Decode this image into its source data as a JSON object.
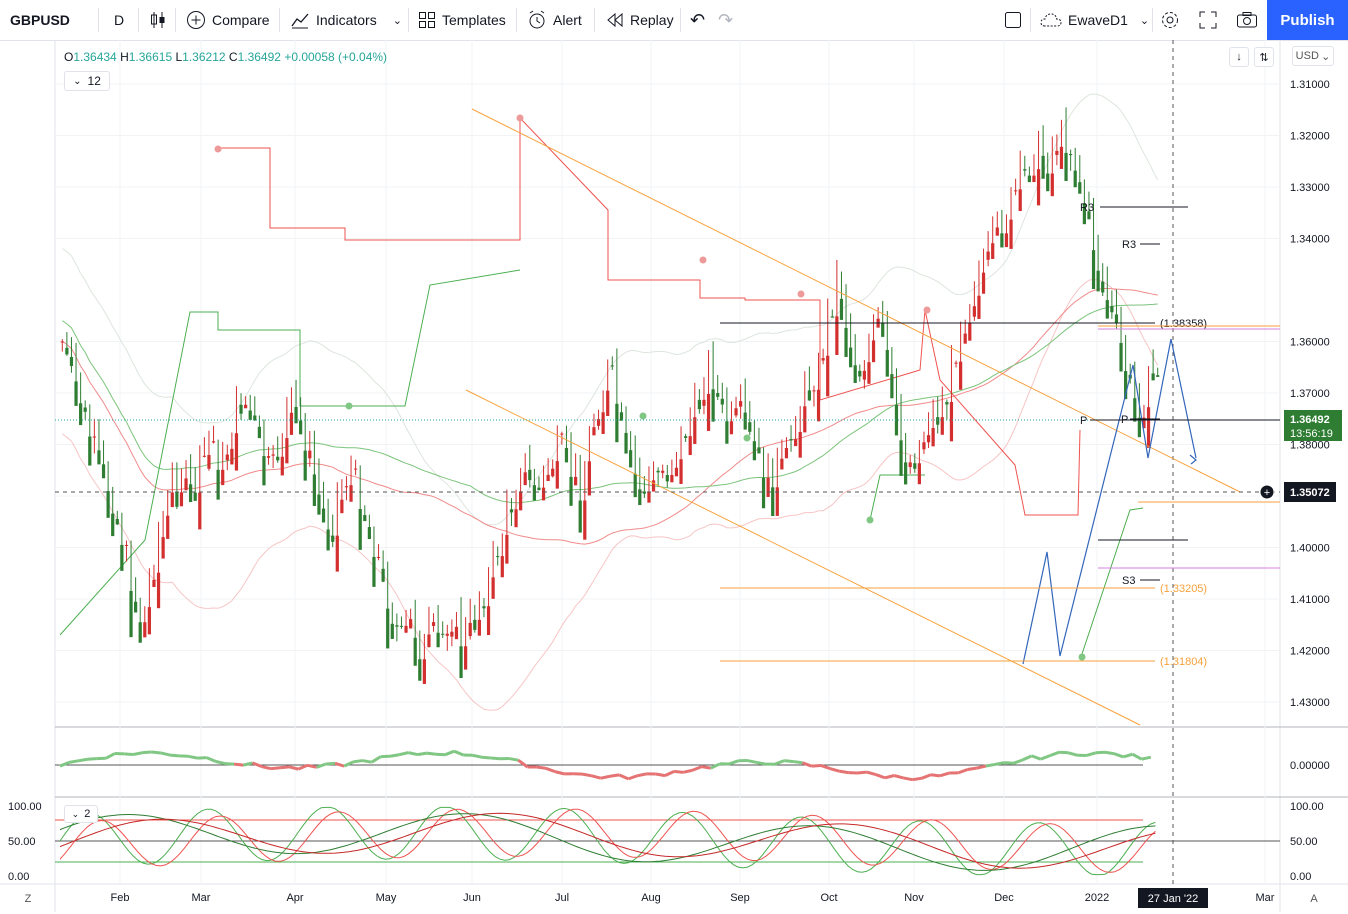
{
  "toolbar": {
    "symbol": "GBPUSD",
    "interval": "D",
    "compare": "Compare",
    "indicators": "Indicators",
    "templates": "Templates",
    "alert": "Alert",
    "replay": "Replay",
    "layout_name": "EwaveD1",
    "publish": "Publish"
  },
  "legend": {
    "o_label": "O",
    "o": "1.36434",
    "h_label": "H",
    "h": "1.36615",
    "l_label": "L",
    "l": "1.36212",
    "c_label": "C",
    "c": "1.36492",
    "change": "+0.00058 (+0.04%)",
    "indicator_count": "12",
    "stoch_count": "2"
  },
  "price_scale": {
    "currency": "USD",
    "last_price": "1.36492",
    "countdown": "13:56:19",
    "crosshair_price": "1.35072"
  },
  "colors": {
    "up": "#26a69a",
    "down": "#ef5350",
    "candle_up": "#2e7d32",
    "candle_down": "#d32f2f",
    "accent": "#2962ff",
    "channel": "#f7a23c",
    "projection": "#3366bb"
  },
  "chart_data": [
    {
      "type": "candlestick",
      "title": "GBPUSD",
      "x_axis": [
        "Feb",
        "Mar",
        "Apr",
        "May",
        "Jun",
        "Jul",
        "Aug",
        "Sep",
        "Oct",
        "Nov",
        "Dec",
        "2022",
        "Mar"
      ],
      "x_marker": "27 Jan '22",
      "y_ticks": [
        "1.43000",
        "1.42000",
        "1.41000",
        "1.40000",
        "1.39000",
        "1.38000",
        "1.37000",
        "1.36000",
        "1.34000",
        "1.33000",
        "1.32000",
        "1.31000"
      ],
      "ylim": [
        1.302,
        1.435
      ],
      "close_path": [
        1.36,
        1.366,
        1.372,
        1.38,
        1.385,
        1.39,
        1.398,
        1.407,
        1.415,
        1.404,
        1.395,
        1.388,
        1.385,
        1.39,
        1.384,
        1.378,
        1.385,
        1.376,
        1.37,
        1.374,
        1.38,
        1.386,
        1.378,
        1.372,
        1.376,
        1.383,
        1.392,
        1.396,
        1.388,
        1.385,
        1.39,
        1.397,
        1.404,
        1.412,
        1.418,
        1.413,
        1.42,
        1.416,
        1.418,
        1.412,
        1.418,
        1.414,
        1.41,
        1.406,
        1.398,
        1.392,
        1.383,
        1.386,
        1.389,
        1.383,
        1.38,
        1.385,
        1.388,
        1.377,
        1.37,
        1.365,
        1.375,
        1.383,
        1.389,
        1.387,
        1.385,
        1.384,
        1.38,
        1.375,
        1.37,
        1.364,
        1.372,
        1.376,
        1.373,
        1.377,
        1.383,
        1.386,
        1.384,
        1.38,
        1.372,
        1.368,
        1.365,
        1.355,
        1.347,
        1.36,
        1.365,
        1.36,
        1.355,
        1.364,
        1.378,
        1.383,
        1.38,
        1.375,
        1.373,
        1.37,
        1.358,
        1.352,
        1.347,
        1.343,
        1.338,
        1.334,
        1.33,
        1.326,
        1.322,
        1.325,
        1.32,
        1.321,
        1.327,
        1.336,
        1.345,
        1.352,
        1.358,
        1.367,
        1.373,
        1.368,
        1.365
      ],
      "levels": [
        {
          "label": "(1.38358)",
          "value": 1.38358
        },
        {
          "label": "(1.33205)",
          "value": 1.33205
        },
        {
          "label": "(1.31804)",
          "value": 1.31804
        },
        {
          "label": "R3",
          "value": 1.4057
        },
        {
          "label": "R3",
          "value": 1.3985
        },
        {
          "label": "P",
          "value": 1.3648
        },
        {
          "label": "P",
          "value": 1.3652
        },
        {
          "label": "S3",
          "value": 1.3335
        }
      ]
    },
    {
      "type": "line",
      "title": "",
      "y_ticks": [
        "0.00000"
      ],
      "ylim": [
        -0.02,
        0.02
      ]
    },
    {
      "type": "line",
      "title": "",
      "y_ticks": [
        "100.00",
        "50.00",
        "0.00"
      ],
      "ylim": [
        0,
        100
      ]
    }
  ]
}
